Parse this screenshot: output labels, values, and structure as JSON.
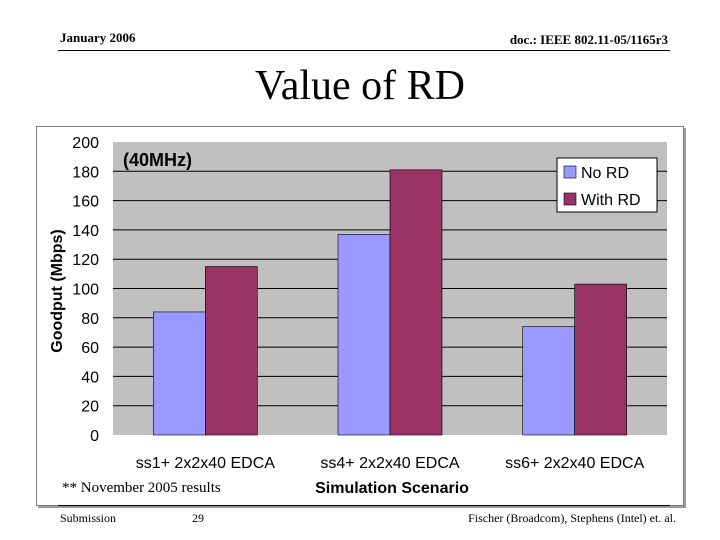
{
  "header": {
    "date": "January 2006",
    "doc_id": "doc.: IEEE 802.11-05/1165r3"
  },
  "slide_title": "Value of RD",
  "note": "** November 2005 results",
  "footer": {
    "left": "Submission",
    "page": "29",
    "right": "Fischer (Broadcom), Stephens (Intel) et. al."
  },
  "colors": {
    "no_rd": "#9999ff",
    "with_rd": "#993366",
    "plot_bg": "#c0c0c0"
  },
  "chart_data": {
    "type": "bar",
    "annotation": "(40MHz)",
    "categories": [
      "ss1+ 2x2x40 EDCA",
      "ss4+ 2x2x40 EDCA",
      "ss6+ 2x2x40 EDCA"
    ],
    "series": [
      {
        "name": "No RD",
        "values": [
          84,
          137,
          74
        ]
      },
      {
        "name": "With RD",
        "values": [
          115,
          181,
          103
        ]
      }
    ],
    "xlabel": "Simulation Scenario",
    "ylabel": "Goodput (Mbps)",
    "ylim": [
      0,
      200
    ],
    "yticks": [
      0,
      20,
      40,
      60,
      80,
      100,
      120,
      140,
      160,
      180,
      200
    ],
    "grid": true,
    "legend": "top-right"
  }
}
